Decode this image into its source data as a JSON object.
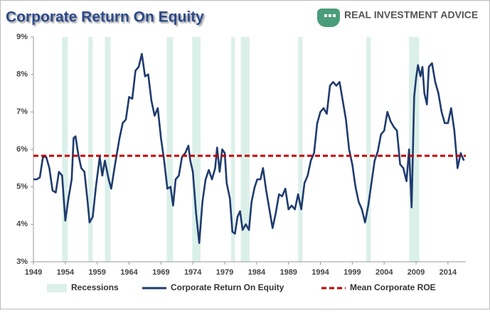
{
  "chart_data": {
    "type": "line",
    "title": "Corporate Return On Equity",
    "logo_text": "REAL INVESTMENT ADVICE",
    "x": [
      1949.0,
      1949.5,
      1950,
      1950.5,
      1951,
      1951.5,
      1952,
      1952.5,
      1953,
      1953.5,
      1954,
      1954.5,
      1955,
      1955.3,
      1955.6,
      1956,
      1956.5,
      1957,
      1957.5,
      1957.8,
      1958.3,
      1958.8,
      1959.4,
      1959.8,
      1960.2,
      1960.8,
      1961.2,
      1961.8,
      1962.5,
      1963,
      1963.5,
      1964,
      1964.5,
      1965,
      1965.5,
      1966,
      1966.5,
      1967,
      1967.5,
      1968,
      1968.5,
      1969,
      1969.5,
      1970,
      1970.5,
      1970.9,
      1971.3,
      1971.8,
      1972.3,
      1972.8,
      1973.3,
      1973.6,
      1974,
      1974.5,
      1975,
      1975.5,
      1976,
      1976.5,
      1977,
      1977.5,
      1977.8,
      1978.2,
      1978.6,
      1979,
      1979.3,
      1979.8,
      1980.2,
      1980.6,
      1981,
      1981.4,
      1981.8,
      1982.3,
      1982.8,
      1983.2,
      1983.7,
      1984.1,
      1984.6,
      1985,
      1985.5,
      1986,
      1986.5,
      1987,
      1987.5,
      1988,
      1988.5,
      1989,
      1989.5,
      1990,
      1990.5,
      1991,
      1991.5,
      1992,
      1992.5,
      1993,
      1993.5,
      1994,
      1994.5,
      1995,
      1995.5,
      1996,
      1996.5,
      1997,
      1997.5,
      1998,
      1998.5,
      1999,
      1999.5,
      2000,
      2000.5,
      2001,
      2001.5,
      2002,
      2002.5,
      2003,
      2003.5,
      2004,
      2004.5,
      2005,
      2005.5,
      2006,
      2006.5,
      2007,
      2007.5,
      2007.9,
      2008.3,
      2008.7,
      2009,
      2009.3,
      2009.7,
      2010,
      2010.3,
      2010.7,
      2011,
      2011.5,
      2012,
      2012.5,
      2013,
      2013.5,
      2014,
      2014.5,
      2015,
      2015.5,
      2016,
      2016.5
    ],
    "series": [
      {
        "name": "Corporate Return On Equity",
        "color": "#1f3b6e",
        "values": [
          5.2,
          5.2,
          5.25,
          5.8,
          5.8,
          5.5,
          4.9,
          4.85,
          5.4,
          5.3,
          4.1,
          4.7,
          5.2,
          6.3,
          6.35,
          5.9,
          5.5,
          5.4,
          4.6,
          4.05,
          4.2,
          5.0,
          5.8,
          5.3,
          5.7,
          5.2,
          4.95,
          5.6,
          6.3,
          6.7,
          6.8,
          7.4,
          7.35,
          8.1,
          8.2,
          8.55,
          7.95,
          8.0,
          7.3,
          6.9,
          7.1,
          6.3,
          5.7,
          4.95,
          5.0,
          4.5,
          5.2,
          5.3,
          5.8,
          5.9,
          6.1,
          5.7,
          5.4,
          4.3,
          3.5,
          4.6,
          5.2,
          5.45,
          5.2,
          5.5,
          6.05,
          5.4,
          6.0,
          5.9,
          5.1,
          4.7,
          3.8,
          3.75,
          4.2,
          4.35,
          3.85,
          4.0,
          3.85,
          4.6,
          5.0,
          5.2,
          5.2,
          5.5,
          4.9,
          4.4,
          3.9,
          4.3,
          4.8,
          4.75,
          4.95,
          4.4,
          4.5,
          4.4,
          4.8,
          4.4,
          5.1,
          5.3,
          5.7,
          5.9,
          6.7,
          7.0,
          7.1,
          6.95,
          7.7,
          7.8,
          7.7,
          7.8,
          7.3,
          6.8,
          6.0,
          5.6,
          5.0,
          4.6,
          4.4,
          4.05,
          4.5,
          5.1,
          5.7,
          5.95,
          6.4,
          6.5,
          7.0,
          6.75,
          6.6,
          6.5,
          5.6,
          5.5,
          5.15,
          6.0,
          4.45,
          7.4,
          7.9,
          8.25,
          7.95,
          8.2,
          7.5,
          7.2,
          8.2,
          8.3,
          7.8,
          7.5,
          7.0,
          6.7,
          6.7,
          7.1,
          6.5,
          5.5,
          5.9,
          5.7
        ]
      }
    ],
    "mean": {
      "name": "Mean Corporate ROE",
      "color": "#c00000",
      "value": 5.83
    },
    "recessions": {
      "name": "Recessions",
      "color": "#dcf0ea",
      "ranges": [
        [
          1953.5,
          1954.4
        ],
        [
          1957.6,
          1958.3
        ],
        [
          1960.2,
          1961.1
        ],
        [
          1969.9,
          1970.9
        ],
        [
          1973.9,
          1975.2
        ],
        [
          1980.0,
          1980.6
        ],
        [
          1981.5,
          1982.9
        ],
        [
          1990.5,
          1991.2
        ],
        [
          2001.2,
          2001.9
        ],
        [
          2007.9,
          2009.5
        ]
      ]
    },
    "xlim": [
      1949,
      2016.8
    ],
    "xticks": [
      1949,
      1954,
      1959,
      1964,
      1969,
      1974,
      1979,
      1984,
      1989,
      1994,
      1999,
      2004,
      2009,
      2014
    ],
    "ylim": [
      3,
      9
    ],
    "yticks": [
      {
        "value": 3,
        "label": "3%"
      },
      {
        "value": 4,
        "label": "4%"
      },
      {
        "value": 5,
        "label": "5%"
      },
      {
        "value": 6,
        "label": "6%"
      },
      {
        "value": 7,
        "label": "7%"
      },
      {
        "value": 8,
        "label": "8%"
      },
      {
        "value": 9,
        "label": "9%"
      }
    ],
    "grid": false
  }
}
